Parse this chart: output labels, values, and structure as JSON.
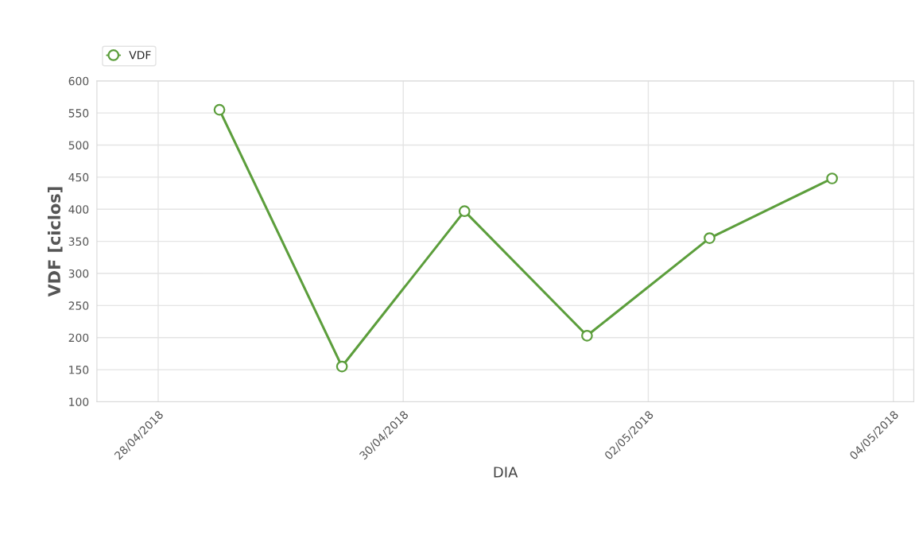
{
  "chart_data": {
    "type": "line",
    "xlabel": "DIA",
    "ylabel": "VDF [ciclos]",
    "x": [
      "2018-04-28T12:00",
      "2018-04-29T12:00",
      "2018-04-30T12:00",
      "2018-05-01T12:00",
      "2018-05-02T12:00",
      "2018-05-03T12:00"
    ],
    "series": [
      {
        "name": "VDF",
        "color": "#5c9e3c",
        "values": [
          555,
          155,
          397,
          203,
          355,
          448
        ]
      }
    ],
    "xlim": [
      "2018-04-27T12:00",
      "2018-05-04T04:00"
    ],
    "xticks": [
      {
        "value": "2018-04-28",
        "label": "28/04/2018"
      },
      {
        "value": "2018-04-30",
        "label": "30/04/2018"
      },
      {
        "value": "2018-05-02",
        "label": "02/05/2018"
      },
      {
        "value": "2018-05-04",
        "label": "04/05/2018"
      }
    ],
    "ylim": [
      100,
      600
    ],
    "yticks": [
      100,
      150,
      200,
      250,
      300,
      350,
      400,
      450,
      500,
      550,
      600
    ],
    "grid": true,
    "legend": "top left",
    "marker": "circle",
    "line_style": "solid"
  }
}
